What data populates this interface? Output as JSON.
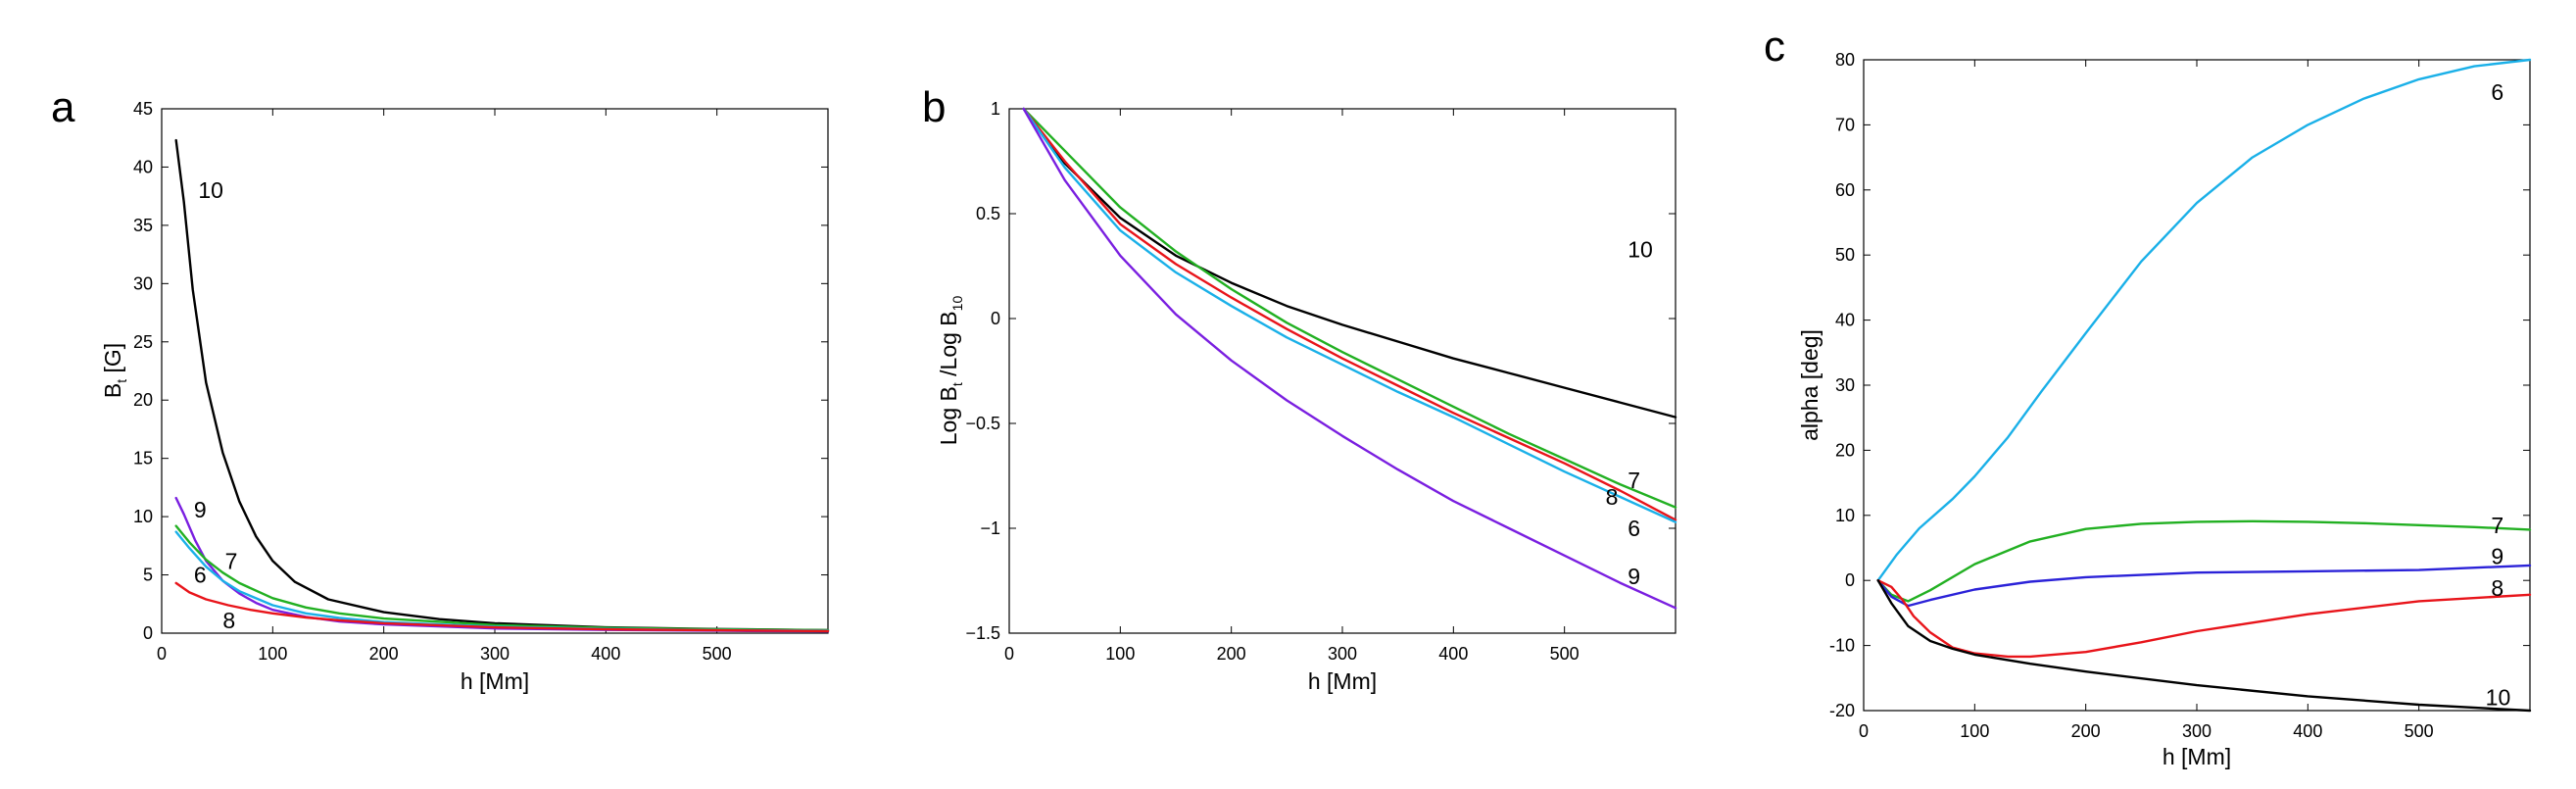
{
  "colors": {
    "6": "#1ab0e8",
    "7": "#22b022",
    "8": "#e8141a",
    "9": "#7a1fe0",
    "10": "#000000",
    "9c": "#2b22d8"
  },
  "chart_data": [
    {
      "panel": "a",
      "type": "line",
      "xlabel": "h [Mm]",
      "ylabel_main": "B",
      "ylabel_sub": "t",
      "ylabel_tail": " [G]",
      "xlim": [
        0,
        600
      ],
      "ylim": [
        0,
        45
      ],
      "xticks": [
        0,
        100,
        200,
        300,
        400,
        500
      ],
      "yticks": [
        0,
        5,
        10,
        15,
        20,
        25,
        30,
        35,
        40,
        45
      ],
      "series": [
        {
          "name": "10",
          "label_at": [
            33,
            38
          ],
          "x": [
            13,
            20,
            28,
            40,
            55,
            70,
            85,
            100,
            120,
            150,
            200,
            250,
            300,
            400,
            500,
            600
          ],
          "y": [
            42.3,
            37,
            29.5,
            21.5,
            15.5,
            11.3,
            8.3,
            6.2,
            4.4,
            2.9,
            1.8,
            1.2,
            0.85,
            0.5,
            0.35,
            0.25
          ]
        },
        {
          "name": "9",
          "label_at": [
            29,
            10.6
          ],
          "x": [
            13,
            20,
            30,
            40,
            55,
            70,
            85,
            100,
            130,
            160,
            200,
            300,
            400,
            500,
            600
          ],
          "y": [
            11.6,
            10.2,
            8.0,
            6.2,
            4.5,
            3.4,
            2.6,
            2.0,
            1.4,
            1.0,
            0.75,
            0.4,
            0.28,
            0.2,
            0.15
          ]
        },
        {
          "name": "7",
          "label_at": [
            57,
            6.2
          ],
          "x": [
            13,
            25,
            40,
            55,
            70,
            100,
            130,
            160,
            200,
            300,
            400,
            500,
            600
          ],
          "y": [
            9.2,
            7.8,
            6.3,
            5.2,
            4.3,
            3.0,
            2.2,
            1.7,
            1.25,
            0.7,
            0.45,
            0.33,
            0.25
          ]
        },
        {
          "name": "6",
          "label_at": [
            29,
            5.0
          ],
          "x": [
            13,
            25,
            40,
            55,
            70,
            100,
            130,
            160,
            200,
            300,
            400,
            500,
            600
          ],
          "y": [
            8.7,
            7.3,
            5.7,
            4.5,
            3.6,
            2.4,
            1.7,
            1.3,
            0.95,
            0.55,
            0.36,
            0.26,
            0.2
          ]
        },
        {
          "name": "8",
          "label_at": [
            55,
            1.1
          ],
          "x": [
            13,
            25,
            40,
            60,
            80,
            100,
            130,
            160,
            200,
            300,
            400,
            500,
            600
          ],
          "y": [
            4.3,
            3.5,
            2.9,
            2.4,
            2.0,
            1.7,
            1.35,
            1.1,
            0.85,
            0.5,
            0.33,
            0.24,
            0.18
          ]
        }
      ]
    },
    {
      "panel": "b",
      "type": "line",
      "xlabel": "h [Mm]",
      "ylabel_a": "Log B",
      "ylabel_a_sub": "t",
      "ylabel_b": " /Log B",
      "ylabel_b_sub": "10",
      "xlim": [
        0,
        600
      ],
      "ylim": [
        -1.5,
        1
      ],
      "xticks": [
        0,
        100,
        200,
        300,
        400,
        500
      ],
      "yticks": [
        -1.5,
        -1,
        -0.5,
        0,
        0.5,
        1
      ],
      "yticklabels": [
        "−1.5",
        "−1",
        "−0.5",
        "0",
        "0.5",
        "1"
      ],
      "series": [
        {
          "name": "10",
          "label_at": [
            557,
            0.33
          ],
          "x": [
            13,
            50,
            100,
            150,
            200,
            250,
            300,
            350,
            400,
            450,
            500,
            550,
            600
          ],
          "y": [
            1.0,
            0.74,
            0.48,
            0.3,
            0.17,
            0.06,
            -0.03,
            -0.11,
            -0.19,
            -0.26,
            -0.33,
            -0.4,
            -0.47
          ]
        },
        {
          "name": "7",
          "label_at": [
            557,
            -0.77
          ],
          "x": [
            13,
            50,
            100,
            150,
            200,
            250,
            300,
            350,
            400,
            450,
            500,
            550,
            600
          ],
          "y": [
            1.0,
            0.8,
            0.53,
            0.32,
            0.14,
            -0.02,
            -0.16,
            -0.29,
            -0.42,
            -0.55,
            -0.67,
            -0.79,
            -0.9
          ]
        },
        {
          "name": "8",
          "label_at": [
            537,
            -0.85
          ],
          "x": [
            13,
            50,
            100,
            150,
            200,
            250,
            300,
            350,
            400,
            450,
            500,
            550,
            600
          ],
          "y": [
            1.0,
            0.75,
            0.45,
            0.26,
            0.1,
            -0.05,
            -0.19,
            -0.32,
            -0.45,
            -0.57,
            -0.69,
            -0.82,
            -0.96
          ]
        },
        {
          "name": "6",
          "label_at": [
            557,
            -1.0
          ],
          "x": [
            13,
            50,
            100,
            150,
            200,
            250,
            300,
            350,
            400,
            450,
            500,
            550,
            600
          ],
          "y": [
            1.0,
            0.72,
            0.42,
            0.22,
            0.06,
            -0.09,
            -0.22,
            -0.35,
            -0.47,
            -0.6,
            -0.73,
            -0.85,
            -0.97
          ]
        },
        {
          "name": "9",
          "label_at": [
            557,
            -1.23
          ],
          "x": [
            13,
            50,
            100,
            150,
            200,
            250,
            300,
            350,
            400,
            450,
            500,
            550,
            600
          ],
          "y": [
            1.0,
            0.66,
            0.3,
            0.02,
            -0.2,
            -0.39,
            -0.56,
            -0.72,
            -0.87,
            -1.0,
            -1.13,
            -1.26,
            -1.38
          ]
        }
      ]
    },
    {
      "panel": "c",
      "type": "line",
      "xlabel": "h [Mm]",
      "ylabel": "alpha [deg]",
      "xlim": [
        0,
        600
      ],
      "ylim": [
        -20,
        80
      ],
      "xticks": [
        0,
        100,
        200,
        300,
        400,
        500
      ],
      "yticks": [
        -20,
        -10,
        0,
        10,
        20,
        30,
        40,
        50,
        60,
        70,
        80
      ],
      "series": [
        {
          "name": "6",
          "label_at": [
            565,
            75
          ],
          "x": [
            13,
            30,
            50,
            80,
            100,
            130,
            160,
            200,
            250,
            300,
            350,
            400,
            450,
            500,
            550,
            600
          ],
          "y": [
            0,
            4,
            8,
            12.5,
            16,
            22,
            29,
            38,
            49,
            58,
            65,
            70,
            74,
            77,
            79,
            80
          ]
        },
        {
          "name": "7",
          "label_at": [
            565,
            8.5
          ],
          "x": [
            13,
            25,
            40,
            60,
            100,
            150,
            200,
            250,
            300,
            350,
            400,
            450,
            500,
            550,
            600
          ],
          "y": [
            0,
            -2.2,
            -3.2,
            -1.5,
            2.5,
            6,
            7.9,
            8.7,
            9.0,
            9.1,
            9.0,
            8.8,
            8.5,
            8.2,
            7.8
          ]
        },
        {
          "name": "9",
          "label_at": [
            565,
            3.7
          ],
          "x": [
            13,
            25,
            40,
            60,
            100,
            150,
            200,
            300,
            400,
            500,
            600
          ],
          "y": [
            0,
            -2.5,
            -3.9,
            -3.0,
            -1.4,
            -0.2,
            0.5,
            1.2,
            1.4,
            1.6,
            2.3
          ]
        },
        {
          "name": "8",
          "label_at": [
            565,
            -1.2
          ],
          "x": [
            13,
            25,
            35,
            45,
            60,
            80,
            100,
            130,
            150,
            200,
            250,
            300,
            400,
            500,
            600
          ],
          "y": [
            0,
            -1,
            -3,
            -5.5,
            -8,
            -10.3,
            -11.2,
            -11.7,
            -11.7,
            -11,
            -9.5,
            -7.8,
            -5.2,
            -3.2,
            -2.2
          ]
        },
        {
          "name": "10",
          "label_at": [
            560,
            -18
          ],
          "x": [
            13,
            25,
            40,
            60,
            80,
            100,
            150,
            200,
            300,
            400,
            500,
            600
          ],
          "y": [
            0,
            -3.5,
            -7,
            -9.3,
            -10.5,
            -11.4,
            -12.8,
            -14.0,
            -16.1,
            -17.8,
            -19.1,
            -20
          ]
        }
      ]
    }
  ]
}
